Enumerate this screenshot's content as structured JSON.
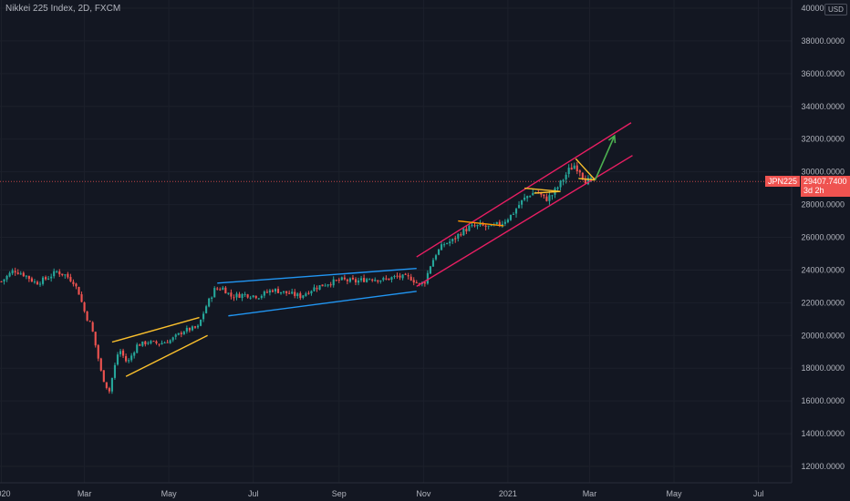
{
  "header": {
    "title": "Nikkei 225 Index, 2D, FXCM"
  },
  "currency": "USD",
  "last_price": {
    "symbol": "JPN225",
    "value": "29407.7400",
    "countdown": "3d 2h"
  },
  "colors": {
    "background": "#131722",
    "up_candle": "#26a69a",
    "down_candle": "#ef5350",
    "channel": "#e91e63",
    "wedge_blue": "#2196f3",
    "triangle_yellow": "#fbc02d",
    "flag_orange": "#ff9800",
    "projection_arrow": "#4caf50",
    "price_line": "#ef5350"
  },
  "chart_data": {
    "type": "candlestick",
    "title": "Nikkei 225 Index, 2D, FXCM",
    "y_range": [
      11000,
      40500
    ],
    "y_ticks": [
      "12000.0000",
      "14000.0000",
      "16000.0000",
      "18000.0000",
      "20000.0000",
      "22000.0000",
      "24000.0000",
      "26000.0000",
      "28000.0000",
      "30000.0000",
      "32000.0000",
      "34000.0000",
      "36000.0000",
      "38000.0000",
      "40000.0000"
    ],
    "x_range": [
      "2019-12-31",
      "2021-07-25"
    ],
    "x_ticks": [
      {
        "date": "2020-01-01",
        "label": "2020"
      },
      {
        "date": "2020-03-01",
        "label": "Mar"
      },
      {
        "date": "2020-05-01",
        "label": "May"
      },
      {
        "date": "2020-07-01",
        "label": "Jul"
      },
      {
        "date": "2020-09-01",
        "label": "Sep"
      },
      {
        "date": "2020-11-01",
        "label": "Nov"
      },
      {
        "date": "2021-01-01",
        "label": "2021"
      },
      {
        "date": "2021-03-01",
        "label": "Mar"
      },
      {
        "date": "2021-05-01",
        "label": "May"
      },
      {
        "date": "2021-07-01",
        "label": "Jul"
      }
    ],
    "close_path": [
      [
        "2020-01-01",
        23300
      ],
      [
        "2020-01-10",
        24000
      ],
      [
        "2020-01-18",
        23700
      ],
      [
        "2020-01-26",
        23200
      ],
      [
        "2020-02-03",
        23500
      ],
      [
        "2020-02-10",
        23900
      ],
      [
        "2020-02-16",
        23700
      ],
      [
        "2020-02-22",
        23300
      ],
      [
        "2020-02-26",
        22600
      ],
      [
        "2020-03-02",
        21200
      ],
      [
        "2020-03-06",
        20600
      ],
      [
        "2020-03-10",
        19000
      ],
      [
        "2020-03-13",
        17800
      ],
      [
        "2020-03-16",
        17000
      ],
      [
        "2020-03-19",
        16600
      ],
      [
        "2020-03-22",
        17800
      ],
      [
        "2020-03-26",
        19200
      ],
      [
        "2020-04-01",
        18300
      ],
      [
        "2020-04-08",
        19400
      ],
      [
        "2020-04-16",
        19600
      ],
      [
        "2020-04-24",
        19500
      ],
      [
        "2020-05-02",
        19700
      ],
      [
        "2020-05-12",
        20300
      ],
      [
        "2020-05-22",
        20500
      ],
      [
        "2020-05-28",
        21800
      ],
      [
        "2020-06-03",
        22800
      ],
      [
        "2020-06-09",
        22900
      ],
      [
        "2020-06-15",
        22400
      ],
      [
        "2020-06-25",
        22500
      ],
      [
        "2020-07-05",
        22400
      ],
      [
        "2020-07-15",
        22800
      ],
      [
        "2020-07-25",
        22600
      ],
      [
        "2020-08-04",
        22400
      ],
      [
        "2020-08-14",
        22900
      ],
      [
        "2020-08-24",
        23200
      ],
      [
        "2020-09-03",
        23400
      ],
      [
        "2020-09-13",
        23300
      ],
      [
        "2020-09-23",
        23500
      ],
      [
        "2020-10-03",
        23400
      ],
      [
        "2020-10-13",
        23600
      ],
      [
        "2020-10-23",
        23500
      ],
      [
        "2020-10-29",
        23100
      ],
      [
        "2020-11-02",
        23300
      ],
      [
        "2020-11-06",
        24300
      ],
      [
        "2020-11-10",
        25000
      ],
      [
        "2020-11-16",
        25600
      ],
      [
        "2020-11-22",
        25800
      ],
      [
        "2020-11-28",
        26300
      ],
      [
        "2020-12-04",
        26600
      ],
      [
        "2020-12-12",
        26700
      ],
      [
        "2020-12-20",
        26600
      ],
      [
        "2020-12-28",
        26900
      ],
      [
        "2021-01-04",
        27400
      ],
      [
        "2021-01-10",
        28100
      ],
      [
        "2021-01-16",
        28600
      ],
      [
        "2021-01-22",
        28800
      ],
      [
        "2021-01-28",
        28300
      ],
      [
        "2021-02-02",
        28600
      ],
      [
        "2021-02-08",
        29300
      ],
      [
        "2021-02-14",
        30100
      ],
      [
        "2021-02-18",
        30400
      ],
      [
        "2021-02-22",
        30100
      ],
      [
        "2021-02-26",
        29500
      ],
      [
        "2021-03-03",
        29400
      ]
    ],
    "drawings": [
      {
        "name": "ascending-channel-upper",
        "color": "#e91e63",
        "points": [
          [
            "2020-10-27",
            24800
          ],
          [
            "2021-03-31",
            33000
          ]
        ]
      },
      {
        "name": "ascending-channel-lower",
        "color": "#e91e63",
        "points": [
          [
            "2020-10-27",
            23000
          ],
          [
            "2021-04-01",
            31000
          ]
        ]
      },
      {
        "name": "blue-wedge-upper",
        "color": "#2196f3",
        "points": [
          [
            "2020-06-05",
            23200
          ],
          [
            "2020-10-27",
            24100
          ]
        ]
      },
      {
        "name": "blue-wedge-lower",
        "color": "#2196f3",
        "points": [
          [
            "2020-06-13",
            21200
          ],
          [
            "2020-10-27",
            22700
          ]
        ]
      },
      {
        "name": "rising-wedge-upper",
        "color": "#fbc02d",
        "points": [
          [
            "2020-03-21",
            19600
          ],
          [
            "2020-05-23",
            21100
          ]
        ]
      },
      {
        "name": "rising-wedge-lower",
        "color": "#fbc02d",
        "points": [
          [
            "2020-03-31",
            17500
          ],
          [
            "2020-05-29",
            20000
          ]
        ]
      },
      {
        "name": "flag-1",
        "color": "#ff9800",
        "points": [
          [
            "2020-11-26",
            27000
          ],
          [
            "2020-12-29",
            26700
          ]
        ]
      },
      {
        "name": "flag-2-upper",
        "color": "#fbc02d",
        "points": [
          [
            "2021-01-13",
            29000
          ],
          [
            "2021-02-08",
            28800
          ]
        ]
      },
      {
        "name": "flag-2-lower",
        "color": "#fbc02d",
        "points": [
          [
            "2021-01-20",
            28700
          ],
          [
            "2021-02-08",
            28800
          ]
        ]
      },
      {
        "name": "pennant-upper",
        "color": "#fbc02d",
        "points": [
          [
            "2021-02-19",
            30800
          ],
          [
            "2021-03-05",
            29500
          ]
        ]
      },
      {
        "name": "pennant-lower",
        "color": "#fbc02d",
        "points": [
          [
            "2021-02-21",
            29600
          ],
          [
            "2021-03-05",
            29500
          ]
        ]
      }
    ],
    "projection": {
      "color": "#4caf50",
      "points": [
        [
          "2021-03-05",
          29500
        ],
        [
          "2021-03-19",
          32200
        ]
      ]
    },
    "last_price_value": 29407.74
  }
}
